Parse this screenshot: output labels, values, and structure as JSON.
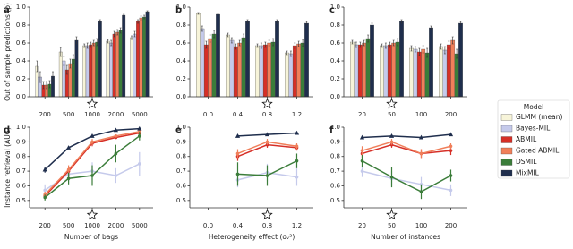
{
  "chart_data": [
    {
      "type": "bar",
      "panel": "a",
      "ylabel": "Out of sample predictions (ρ)",
      "categories": [
        "200",
        "500",
        "1000",
        "2000",
        "5000"
      ],
      "ylim": [
        0,
        1
      ],
      "yticks": [
        {
          "value": 0,
          "label": "0.0"
        },
        0.2,
        0.4,
        0.6,
        0.8,
        {
          "value": 1,
          "label": "1.0"
        }
      ],
      "legend": {
        "title": "Model",
        "position": "right"
      },
      "series": [
        {
          "name": "GLMM (mean)",
          "color": "#f7f4d9",
          "values": [
            0.34,
            0.5,
            0.57,
            0.62,
            0.66
          ],
          "errors": [
            0.06,
            0.05,
            0.02,
            0.02,
            0.02
          ]
        },
        {
          "name": "Bayes-MIL",
          "color": "#c5caeb",
          "values": [
            0.22,
            0.4,
            0.57,
            0.6,
            0.7
          ],
          "errors": [
            0.06,
            0.05,
            0.03,
            0.03,
            0.03
          ]
        },
        {
          "name": "ABMIL",
          "color": "#d62f27",
          "values": [
            0.13,
            0.3,
            0.58,
            0.7,
            0.84
          ],
          "errors": [
            0.04,
            0.05,
            0.03,
            0.03,
            0.02
          ]
        },
        {
          "name": "Gated ABMIL",
          "color": "#f07f5a",
          "values": [
            0.13,
            0.37,
            0.6,
            0.72,
            0.88
          ],
          "errors": [
            0.04,
            0.05,
            0.03,
            0.03,
            0.02
          ]
        },
        {
          "name": "DSMIL",
          "color": "#3b7d3a",
          "values": [
            0.14,
            0.42,
            0.61,
            0.74,
            0.89
          ],
          "errors": [
            0.04,
            0.05,
            0.04,
            0.03,
            0.02
          ]
        },
        {
          "name": "MixMIL",
          "color": "#1f2e4d",
          "values": [
            0.23,
            0.63,
            0.84,
            0.91,
            0.95
          ],
          "errors": [
            0.05,
            0.04,
            0.02,
            0.01,
            0.01
          ]
        }
      ]
    },
    {
      "type": "bar",
      "panel": "b",
      "categories": [
        "0.0",
        "0.4",
        "0.8",
        "1.2"
      ],
      "ylim": [
        0,
        1
      ],
      "yticks": [
        {
          "value": 0,
          "label": "0.0"
        },
        0.2,
        0.4,
        0.6,
        0.8,
        {
          "value": 1,
          "label": "1.0"
        }
      ],
      "series": [
        {
          "name": "GLMM (mean)",
          "color": "#f7f4d9",
          "values": [
            0.93,
            0.69,
            0.57,
            0.49
          ],
          "errors": [
            0.01,
            0.02,
            0.02,
            0.02
          ]
        },
        {
          "name": "Bayes-MIL",
          "color": "#c5caeb",
          "values": [
            0.76,
            0.63,
            0.57,
            0.48
          ],
          "errors": [
            0.03,
            0.03,
            0.03,
            0.03
          ]
        },
        {
          "name": "ABMIL",
          "color": "#d62f27",
          "values": [
            0.58,
            0.56,
            0.58,
            0.57
          ],
          "errors": [
            0.04,
            0.03,
            0.03,
            0.03
          ]
        },
        {
          "name": "Gated ABMIL",
          "color": "#f07f5a",
          "values": [
            0.65,
            0.6,
            0.6,
            0.59
          ],
          "errors": [
            0.04,
            0.03,
            0.03,
            0.03
          ]
        },
        {
          "name": "DSMIL",
          "color": "#3b7d3a",
          "values": [
            0.7,
            0.66,
            0.61,
            0.6
          ],
          "errors": [
            0.04,
            0.04,
            0.04,
            0.04
          ]
        },
        {
          "name": "MixMIL",
          "color": "#1f2e4d",
          "values": [
            0.92,
            0.84,
            0.84,
            0.82
          ],
          "errors": [
            0.01,
            0.02,
            0.02,
            0.02
          ]
        }
      ]
    },
    {
      "type": "bar",
      "panel": "c",
      "categories": [
        "20",
        "50",
        "100",
        "200"
      ],
      "ylim": [
        0,
        1
      ],
      "yticks": [
        {
          "value": 0,
          "label": "0.0"
        },
        0.2,
        0.4,
        0.6,
        0.8,
        {
          "value": 1,
          "label": "1.0"
        }
      ],
      "series": [
        {
          "name": "GLMM (mean)",
          "color": "#f7f4d9",
          "values": [
            0.61,
            0.57,
            0.54,
            0.56
          ],
          "errors": [
            0.02,
            0.02,
            0.03,
            0.03
          ]
        },
        {
          "name": "Bayes-MIL",
          "color": "#c5caeb",
          "values": [
            0.58,
            0.57,
            0.53,
            0.52
          ],
          "errors": [
            0.03,
            0.03,
            0.03,
            0.04
          ]
        },
        {
          "name": "ABMIL",
          "color": "#d62f27",
          "values": [
            0.58,
            0.58,
            0.5,
            0.58
          ],
          "errors": [
            0.03,
            0.03,
            0.04,
            0.04
          ]
        },
        {
          "name": "Gated ABMIL",
          "color": "#f07f5a",
          "values": [
            0.6,
            0.6,
            0.53,
            0.63
          ],
          "errors": [
            0.03,
            0.03,
            0.04,
            0.04
          ]
        },
        {
          "name": "DSMIL",
          "color": "#3b7d3a",
          "values": [
            0.65,
            0.61,
            0.49,
            0.48
          ],
          "errors": [
            0.04,
            0.04,
            0.05,
            0.05
          ]
        },
        {
          "name": "MixMIL",
          "color": "#1f2e4d",
          "values": [
            0.8,
            0.84,
            0.77,
            0.82
          ],
          "errors": [
            0.02,
            0.02,
            0.02,
            0.02
          ]
        }
      ]
    },
    {
      "type": "line",
      "panel": "d",
      "ylabel": "Instance retrieval (AUC)",
      "xlabel": "Number of bags",
      "categories": [
        "200",
        "500",
        "1000",
        "2000",
        "5000"
      ],
      "ylim": [
        0.45,
        1
      ],
      "yticks": [
        0.5,
        0.6,
        0.7,
        0.8,
        0.9,
        {
          "value": 1,
          "label": "1.0"
        }
      ],
      "series": [
        {
          "name": "Bayes-MIL",
          "color": "#c5caeb",
          "values": [
            0.57,
            0.68,
            0.7,
            0.67,
            0.75
          ],
          "errors": [
            0.04,
            0.05,
            0.06,
            0.05,
            0.08
          ]
        },
        {
          "name": "ABMIL",
          "color": "#d62f27",
          "values": [
            0.53,
            0.7,
            0.89,
            0.93,
            0.96
          ],
          "errors": [
            0.02,
            0.03,
            0.02,
            0.01,
            0.01
          ]
        },
        {
          "name": "Gated ABMIL",
          "color": "#f07f5a",
          "values": [
            0.54,
            0.71,
            0.9,
            0.94,
            0.97
          ],
          "errors": [
            0.02,
            0.03,
            0.02,
            0.01,
            0.01
          ]
        },
        {
          "name": "DSMIL",
          "color": "#3b7d3a",
          "values": [
            0.52,
            0.65,
            0.67,
            0.82,
            0.94
          ],
          "errors": [
            0.02,
            0.04,
            0.07,
            0.06,
            0.03
          ]
        },
        {
          "name": "MixMIL",
          "color": "#1f2e4d",
          "values": [
            0.71,
            0.86,
            0.94,
            0.98,
            0.99
          ],
          "errors": [
            0.02,
            0.01,
            0.01,
            0.005,
            0.005
          ]
        }
      ]
    },
    {
      "type": "line",
      "panel": "e",
      "xlabel": "Heterogeneity effect (σᵥ²)",
      "categories": [
        "0.0",
        "0.4",
        "0.8",
        "1.2"
      ],
      "ylim": [
        0.45,
        1
      ],
      "yticks": [
        0.5,
        0.6,
        0.7,
        0.8,
        0.9,
        {
          "value": 1,
          "label": "1.0"
        }
      ],
      "series": [
        {
          "name": "Bayes-MIL",
          "color": "#c5caeb",
          "values": [
            null,
            0.64,
            0.69,
            0.66
          ],
          "errors": [
            null,
            0.05,
            0.06,
            0.06
          ]
        },
        {
          "name": "ABMIL",
          "color": "#d62f27",
          "values": [
            null,
            0.8,
            0.88,
            0.86
          ],
          "errors": [
            null,
            0.03,
            0.02,
            0.02
          ]
        },
        {
          "name": "Gated ABMIL",
          "color": "#f07f5a",
          "values": [
            null,
            0.82,
            0.9,
            0.87
          ],
          "errors": [
            null,
            0.03,
            0.02,
            0.02
          ]
        },
        {
          "name": "DSMIL",
          "color": "#3b7d3a",
          "values": [
            null,
            0.68,
            0.67,
            0.77
          ],
          "errors": [
            null,
            0.08,
            0.07,
            0.05
          ]
        },
        {
          "name": "MixMIL",
          "color": "#1f2e4d",
          "values": [
            null,
            0.94,
            0.95,
            0.96
          ],
          "errors": [
            null,
            0.01,
            0.01,
            0.01
          ]
        }
      ]
    },
    {
      "type": "line",
      "panel": "f",
      "xlabel": "Number of instances",
      "categories": [
        "20",
        "50",
        "100",
        "200"
      ],
      "ylim": [
        0.45,
        1
      ],
      "yticks": [
        0.5,
        0.6,
        0.7,
        0.8,
        0.9,
        {
          "value": 1,
          "label": "1.0"
        }
      ],
      "series": [
        {
          "name": "Bayes-MIL",
          "color": "#c5caeb",
          "values": [
            0.7,
            0.65,
            0.61,
            0.57
          ],
          "errors": [
            0.04,
            0.05,
            0.05,
            0.04
          ]
        },
        {
          "name": "ABMIL",
          "color": "#d62f27",
          "values": [
            0.82,
            0.88,
            0.82,
            0.84
          ],
          "errors": [
            0.03,
            0.02,
            0.03,
            0.03
          ]
        },
        {
          "name": "Gated ABMIL",
          "color": "#f07f5a",
          "values": [
            0.84,
            0.9,
            0.82,
            0.87
          ],
          "errors": [
            0.03,
            0.02,
            0.03,
            0.02
          ]
        },
        {
          "name": "DSMIL",
          "color": "#3b7d3a",
          "values": [
            0.77,
            0.66,
            0.56,
            0.67
          ],
          "errors": [
            0.04,
            0.07,
            0.05,
            0.04
          ]
        },
        {
          "name": "MixMIL",
          "color": "#1f2e4d",
          "values": [
            0.93,
            0.94,
            0.93,
            0.95
          ],
          "errors": [
            0.01,
            0.01,
            0.01,
            0.01
          ]
        }
      ]
    }
  ]
}
